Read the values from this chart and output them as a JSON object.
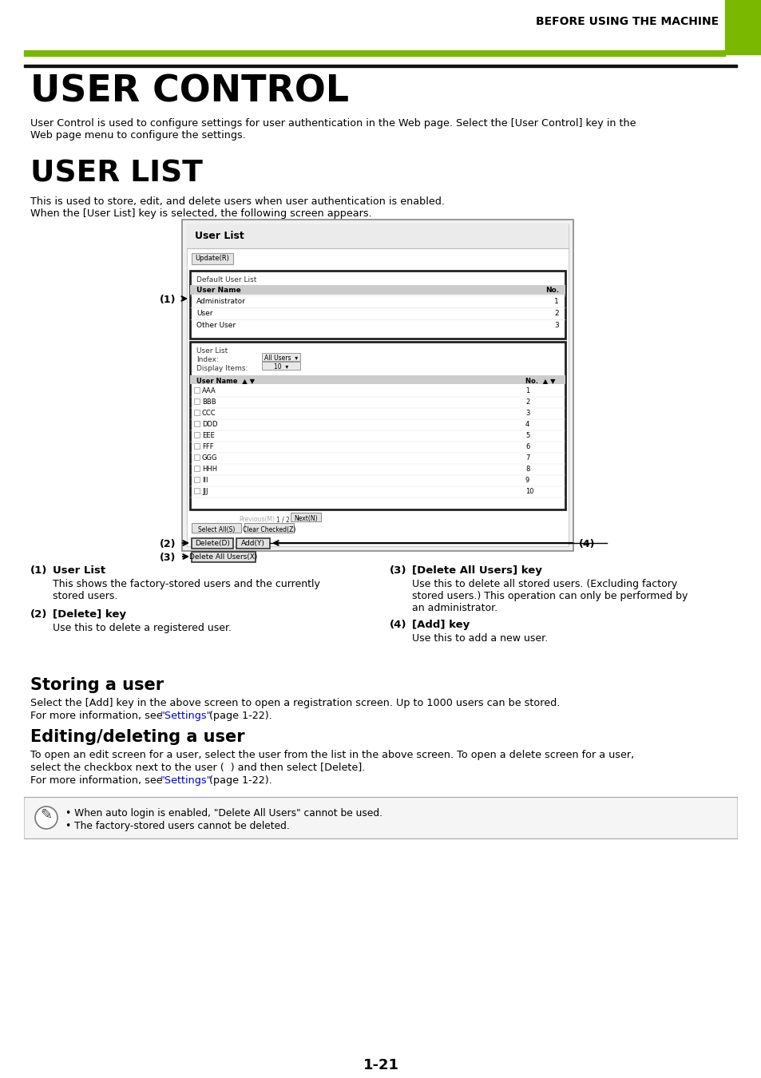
{
  "page_header_text": "BEFORE USING THE MACHINE",
  "header_green_color": "#7AB800",
  "title1": "USER CONTROL",
  "title1_desc": "User Control is used to configure settings for user authentication in the Web page. Select the [User Control] key in the\nWeb page menu to configure the settings.",
  "title2": "USER LIST",
  "title2_desc1": "This is used to store, edit, and delete users when user authentication is enabled.",
  "title2_desc2": "When the [User List] key is selected, the following screen appears.",
  "section3_title": "Storing a user",
  "section3_desc1": "Select the [Add] key in the above screen to open a registration screen. Up to 1000 users can be stored.",
  "section3_desc2": "For more information, see \"Settings\" (page 1-22).",
  "section4_title": "Editing/deleting a user",
  "section4_desc1": "To open an edit screen for a user, select the user from the list in the above screen. To open a delete screen for a user,",
  "section4_desc2": "select the checkbox next to the user (  ) and then select [Delete].",
  "section4_desc3": "For more information, see \"Settings\" (page 1-22).",
  "note_line1": "• When auto login is enabled, \"Delete All Users\" cannot be used.",
  "note_line2": "• The factory-stored users cannot be deleted.",
  "page_number": "1-21",
  "callout1_num": "(1)",
  "callout1_title": "User List",
  "callout1_desc1": "This shows the factory-stored users and the currently",
  "callout1_desc2": "stored users.",
  "callout2_num": "(2)",
  "callout2_title": "[Delete] key",
  "callout2_desc": "Use this to delete a registered user.",
  "callout3_num": "(3)",
  "callout3_title": "[Delete All Users] key",
  "callout3_desc1": "Use this to delete all stored users. (Excluding factory",
  "callout3_desc2": "stored users.) This operation can only be performed by",
  "callout3_desc3": "an administrator.",
  "callout4_num": "(4)",
  "callout4_title": "[Add] key",
  "callout4_desc": "Use this to add a new user.",
  "bg_color": "#ffffff",
  "text_color": "#000000",
  "green_color": "#7AB800",
  "link_color": "#0000cc"
}
